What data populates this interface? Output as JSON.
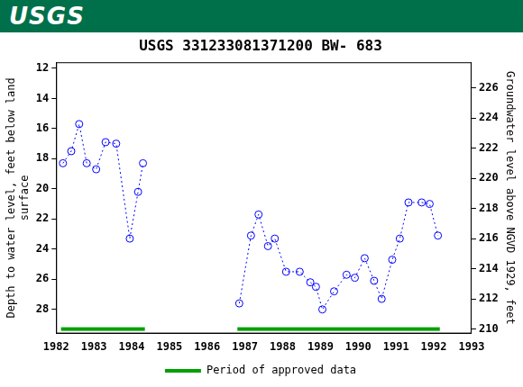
{
  "header": {
    "text": "USGS"
  },
  "chart_data": {
    "type": "scatter",
    "title": "USGS 331233081371200 BW- 683",
    "ylabel": [
      "Depth to water level, feet below land",
      "surface"
    ],
    "y2label": "Groundwater level above NGVD 1929, feet",
    "x": [
      1982.18,
      1982.4,
      1982.61,
      1982.81,
      1983.06,
      1983.31,
      1983.59,
      1983.95,
      1984.17,
      1984.3,
      null,
      1986.85,
      1987.16,
      1987.36,
      1987.61,
      1987.79,
      1988.09,
      1988.45,
      1988.73,
      1988.88,
      1989.05,
      1989.36,
      1989.69,
      1989.91,
      1990.17,
      1990.42,
      1990.62,
      1990.9,
      1991.1,
      1991.33,
      1991.68,
      1991.89,
      1992.11
    ],
    "series": [
      {
        "color": "#0000ff",
        "marker": "circle",
        "line_style": "dotted",
        "values": [
          18.3,
          17.5,
          15.7,
          18.3,
          18.7,
          16.9,
          17.0,
          23.3,
          20.2,
          18.3,
          null,
          27.6,
          23.1,
          21.7,
          23.8,
          23.3,
          25.5,
          25.5,
          26.2,
          26.5,
          28.0,
          26.8,
          25.7,
          25.9,
          24.6,
          26.1,
          27.3,
          24.7,
          23.3,
          20.9,
          20.9,
          21.0,
          23.1
        ]
      }
    ],
    "approved_periods": {
      "name": "Period of approved data",
      "color": "#00a000",
      "ranges": [
        [
          1982.13,
          1984.35
        ],
        [
          1986.8,
          1992.16
        ]
      ]
    },
    "xlim": [
      1982,
      1993
    ],
    "xticks": [
      1982,
      1983,
      1984,
      1985,
      1986,
      1987,
      1988,
      1989,
      1990,
      1991,
      1992,
      1993
    ],
    "ylim": [
      29.6,
      11.6
    ],
    "yticks": [
      12,
      14,
      16,
      18,
      20,
      22,
      24,
      26,
      28
    ],
    "y2lim": [
      209.7,
      227.7
    ],
    "y2ticks": [
      210,
      212,
      214,
      216,
      218,
      220,
      222,
      224,
      226
    ],
    "grid": false,
    "legend": "bottom"
  }
}
